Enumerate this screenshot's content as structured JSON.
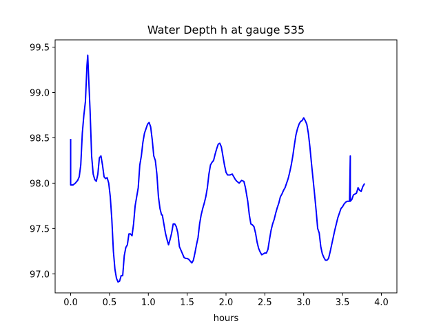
{
  "chart_data": {
    "type": "line",
    "title": "Water Depth h at gauge 535",
    "xlabel": "hours",
    "ylabel": "",
    "xlim": [
      -0.2,
      4.2
    ],
    "ylim": [
      96.79,
      99.58
    ],
    "xticks": [
      {
        "value": 0.0,
        "label": "0.0"
      },
      {
        "value": 0.5,
        "label": "0.5"
      },
      {
        "value": 1.0,
        "label": "1.0"
      },
      {
        "value": 1.5,
        "label": "1.5"
      },
      {
        "value": 2.0,
        "label": "2.0"
      },
      {
        "value": 2.5,
        "label": "2.5"
      },
      {
        "value": 3.0,
        "label": "3.0"
      },
      {
        "value": 3.5,
        "label": "3.5"
      },
      {
        "value": 4.0,
        "label": "4.0"
      }
    ],
    "yticks": [
      {
        "value": 97.0,
        "label": "97.0"
      },
      {
        "value": 97.5,
        "label": "97.5"
      },
      {
        "value": 98.0,
        "label": "98.0"
      },
      {
        "value": 98.5,
        "label": "98.5"
      },
      {
        "value": 99.0,
        "label": "99.0"
      },
      {
        "value": 99.5,
        "label": "99.5"
      }
    ],
    "grid": false,
    "series": [
      {
        "color": "#0000ff",
        "points": [
          [
            0.0,
            98.48
          ],
          [
            0.0,
            97.98
          ],
          [
            0.03,
            97.98
          ],
          [
            0.06,
            98.0
          ],
          [
            0.09,
            98.03
          ],
          [
            0.11,
            98.07
          ],
          [
            0.13,
            98.2
          ],
          [
            0.15,
            98.55
          ],
          [
            0.17,
            98.75
          ],
          [
            0.19,
            98.9
          ],
          [
            0.2,
            99.1
          ],
          [
            0.21,
            99.3
          ],
          [
            0.22,
            99.41
          ],
          [
            0.23,
            99.2
          ],
          [
            0.25,
            98.8
          ],
          [
            0.27,
            98.3
          ],
          [
            0.29,
            98.1
          ],
          [
            0.31,
            98.04
          ],
          [
            0.33,
            98.02
          ],
          [
            0.35,
            98.1
          ],
          [
            0.37,
            98.28
          ],
          [
            0.39,
            98.3
          ],
          [
            0.41,
            98.2
          ],
          [
            0.43,
            98.07
          ],
          [
            0.45,
            98.05
          ],
          [
            0.47,
            98.06
          ],
          [
            0.49,
            98.0
          ],
          [
            0.51,
            97.85
          ],
          [
            0.53,
            97.6
          ],
          [
            0.55,
            97.25
          ],
          [
            0.57,
            97.05
          ],
          [
            0.59,
            96.95
          ],
          [
            0.61,
            96.91
          ],
          [
            0.63,
            96.92
          ],
          [
            0.65,
            96.98
          ],
          [
            0.67,
            96.98
          ],
          [
            0.69,
            97.2
          ],
          [
            0.71,
            97.29
          ],
          [
            0.73,
            97.32
          ],
          [
            0.75,
            97.44
          ],
          [
            0.77,
            97.44
          ],
          [
            0.79,
            97.42
          ],
          [
            0.81,
            97.55
          ],
          [
            0.83,
            97.75
          ],
          [
            0.85,
            97.85
          ],
          [
            0.87,
            97.95
          ],
          [
            0.89,
            98.2
          ],
          [
            0.91,
            98.3
          ],
          [
            0.93,
            98.45
          ],
          [
            0.95,
            98.55
          ],
          [
            0.97,
            98.6
          ],
          [
            0.99,
            98.65
          ],
          [
            1.01,
            98.67
          ],
          [
            1.03,
            98.62
          ],
          [
            1.05,
            98.48
          ],
          [
            1.07,
            98.3
          ],
          [
            1.09,
            98.25
          ],
          [
            1.11,
            98.1
          ],
          [
            1.13,
            97.85
          ],
          [
            1.15,
            97.72
          ],
          [
            1.17,
            97.65
          ],
          [
            1.18,
            97.65
          ],
          [
            1.2,
            97.55
          ],
          [
            1.22,
            97.45
          ],
          [
            1.24,
            97.38
          ],
          [
            1.26,
            97.32
          ],
          [
            1.28,
            97.38
          ],
          [
            1.3,
            97.45
          ],
          [
            1.32,
            97.55
          ],
          [
            1.34,
            97.55
          ],
          [
            1.36,
            97.52
          ],
          [
            1.38,
            97.45
          ],
          [
            1.4,
            97.3
          ],
          [
            1.42,
            97.26
          ],
          [
            1.44,
            97.22
          ],
          [
            1.46,
            97.18
          ],
          [
            1.48,
            97.17
          ],
          [
            1.5,
            97.17
          ],
          [
            1.52,
            97.16
          ],
          [
            1.54,
            97.14
          ],
          [
            1.56,
            97.12
          ],
          [
            1.58,
            97.15
          ],
          [
            1.6,
            97.23
          ],
          [
            1.62,
            97.32
          ],
          [
            1.64,
            97.4
          ],
          [
            1.66,
            97.55
          ],
          [
            1.68,
            97.65
          ],
          [
            1.7,
            97.72
          ],
          [
            1.72,
            97.78
          ],
          [
            1.74,
            97.85
          ],
          [
            1.76,
            97.95
          ],
          [
            1.78,
            98.1
          ],
          [
            1.8,
            98.2
          ],
          [
            1.82,
            98.23
          ],
          [
            1.84,
            98.25
          ],
          [
            1.86,
            98.32
          ],
          [
            1.88,
            98.38
          ],
          [
            1.9,
            98.43
          ],
          [
            1.92,
            98.44
          ],
          [
            1.94,
            98.4
          ],
          [
            1.96,
            98.3
          ],
          [
            1.98,
            98.2
          ],
          [
            2.0,
            98.12
          ],
          [
            2.02,
            98.09
          ],
          [
            2.05,
            98.09
          ],
          [
            2.08,
            98.1
          ],
          [
            2.1,
            98.07
          ],
          [
            2.12,
            98.04
          ],
          [
            2.14,
            98.02
          ],
          [
            2.17,
            98.0
          ],
          [
            2.2,
            98.03
          ],
          [
            2.23,
            98.02
          ],
          [
            2.25,
            97.95
          ],
          [
            2.28,
            97.8
          ],
          [
            2.3,
            97.65
          ],
          [
            2.32,
            97.55
          ],
          [
            2.34,
            97.54
          ],
          [
            2.36,
            97.52
          ],
          [
            2.38,
            97.45
          ],
          [
            2.4,
            97.35
          ],
          [
            2.42,
            97.28
          ],
          [
            2.44,
            97.24
          ],
          [
            2.46,
            97.21
          ],
          [
            2.48,
            97.22
          ],
          [
            2.5,
            97.23
          ],
          [
            2.52,
            97.23
          ],
          [
            2.54,
            97.27
          ],
          [
            2.56,
            97.38
          ],
          [
            2.58,
            97.48
          ],
          [
            2.6,
            97.55
          ],
          [
            2.62,
            97.6
          ],
          [
            2.64,
            97.67
          ],
          [
            2.66,
            97.73
          ],
          [
            2.68,
            97.78
          ],
          [
            2.7,
            97.85
          ],
          [
            2.72,
            97.88
          ],
          [
            2.74,
            97.92
          ],
          [
            2.76,
            97.95
          ],
          [
            2.78,
            98.0
          ],
          [
            2.8,
            98.05
          ],
          [
            2.82,
            98.12
          ],
          [
            2.84,
            98.2
          ],
          [
            2.86,
            98.3
          ],
          [
            2.88,
            98.42
          ],
          [
            2.9,
            98.53
          ],
          [
            2.92,
            98.6
          ],
          [
            2.94,
            98.65
          ],
          [
            2.96,
            98.68
          ],
          [
            2.98,
            98.69
          ],
          [
            3.0,
            98.72
          ],
          [
            3.02,
            98.69
          ],
          [
            3.04,
            98.65
          ],
          [
            3.06,
            98.55
          ],
          [
            3.08,
            98.4
          ],
          [
            3.1,
            98.22
          ],
          [
            3.12,
            98.05
          ],
          [
            3.14,
            97.88
          ],
          [
            3.16,
            97.7
          ],
          [
            3.18,
            97.5
          ],
          [
            3.2,
            97.45
          ],
          [
            3.22,
            97.3
          ],
          [
            3.24,
            97.22
          ],
          [
            3.26,
            97.18
          ],
          [
            3.28,
            97.15
          ],
          [
            3.3,
            97.15
          ],
          [
            3.32,
            97.17
          ],
          [
            3.34,
            97.24
          ],
          [
            3.36,
            97.32
          ],
          [
            3.38,
            97.4
          ],
          [
            3.4,
            97.48
          ],
          [
            3.42,
            97.55
          ],
          [
            3.44,
            97.62
          ],
          [
            3.46,
            97.67
          ],
          [
            3.48,
            97.72
          ],
          [
            3.5,
            97.74
          ],
          [
            3.52,
            97.77
          ],
          [
            3.54,
            97.79
          ],
          [
            3.56,
            97.8
          ],
          [
            3.58,
            97.8
          ],
          [
            3.59,
            97.8
          ],
          [
            3.6,
            98.3
          ],
          [
            3.6,
            97.8
          ],
          [
            3.62,
            97.82
          ],
          [
            3.64,
            97.87
          ],
          [
            3.66,
            97.88
          ],
          [
            3.68,
            97.89
          ],
          [
            3.7,
            97.95
          ],
          [
            3.72,
            97.92
          ],
          [
            3.74,
            97.91
          ],
          [
            3.76,
            97.96
          ],
          [
            3.78,
            97.99
          ]
        ]
      }
    ]
  }
}
